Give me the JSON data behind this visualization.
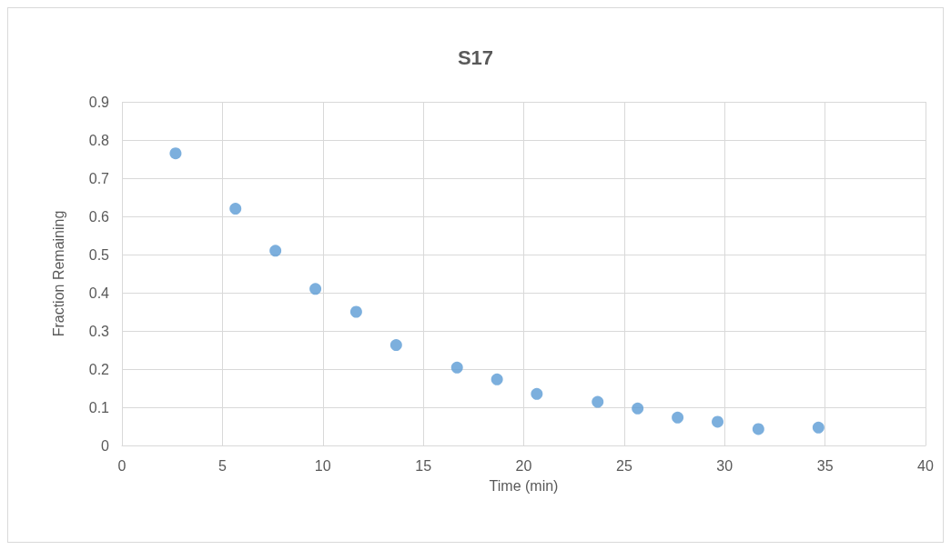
{
  "chart_data": {
    "type": "scatter",
    "title": "S17",
    "xlabel": "Time (min)",
    "ylabel": "Fraction Remaining",
    "x": [
      2.67,
      5.65,
      7.64,
      9.63,
      11.66,
      13.65,
      16.68,
      18.67,
      20.65,
      23.68,
      25.67,
      27.66,
      29.65,
      31.68,
      34.67
    ],
    "series": [
      {
        "color": "#5b9bd5",
        "values": [
          0.765,
          0.62,
          0.51,
          0.41,
          0.35,
          0.263,
          0.204,
          0.173,
          0.135,
          0.114,
          0.097,
          0.073,
          0.062,
          0.043,
          0.047
        ]
      }
    ],
    "xlim": [
      0,
      40
    ],
    "xticks": [
      0,
      5,
      10,
      15,
      20,
      25,
      30,
      35,
      40
    ],
    "ylim": [
      0,
      0.9
    ],
    "yticks": [
      0,
      0.1,
      0.2,
      0.3,
      0.4,
      0.5,
      0.6,
      0.7,
      0.8,
      0.9
    ],
    "grid": true,
    "marker": "circle"
  }
}
